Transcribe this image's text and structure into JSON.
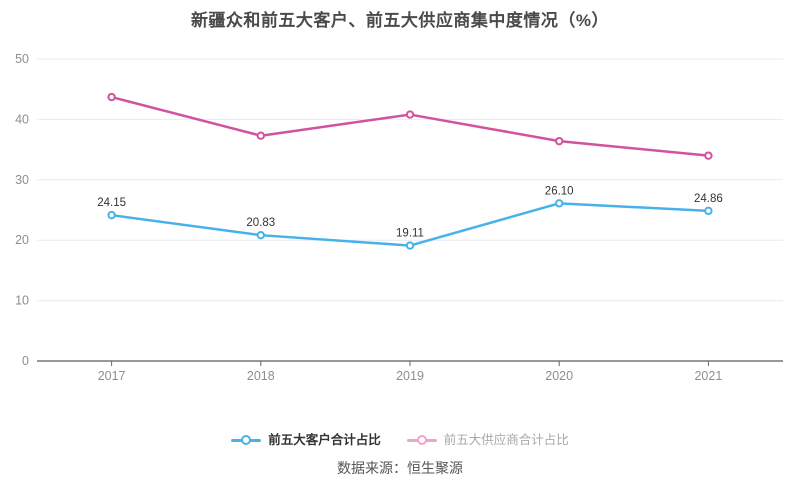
{
  "title": "新疆众和前五大客户、前五大供应商集中度情况（%）",
  "source": "数据来源：恒生聚源",
  "colors": {
    "grid_line": "#e6ebf4",
    "zero_axis": "#333333",
    "tick": "#666666",
    "axis_label": "#8e8e8e",
    "data_label": "#333333",
    "title": "#4a4a4a",
    "background": "#ffffff"
  },
  "chart_data": {
    "type": "line",
    "title": "新疆众和前五大客户、前五大供应商集中度情况（%）",
    "categories": [
      "2017",
      "2018",
      "2019",
      "2020",
      "2021"
    ],
    "series": [
      {
        "name": "前五大客户合计占比",
        "color": "#47b2e9",
        "values": [
          24.15,
          20.83,
          19.11,
          26.1,
          24.86
        ],
        "point_labels": [
          "24.15",
          "20.83",
          "19.11",
          "26.10",
          "24.86"
        ],
        "labels_visible": true,
        "legend_icon_color": "#47b2e9",
        "legend_text_color": "#333333"
      },
      {
        "name": "前五大供应商合计占比",
        "color": "#d1539e",
        "values": [
          43.7,
          37.3,
          40.8,
          36.4,
          34.0
        ],
        "point_labels": [],
        "labels_visible": false,
        "legend_icon_color": "#f0a3cb",
        "legend_text_color": "#a8a8a8"
      }
    ],
    "ylim": [
      0,
      50
    ],
    "yticks": [
      0,
      10,
      20,
      30,
      40,
      50
    ],
    "xlabel": "",
    "ylabel": "",
    "grid": true,
    "legend_position": "bottom",
    "marker": "hollow-circle"
  }
}
